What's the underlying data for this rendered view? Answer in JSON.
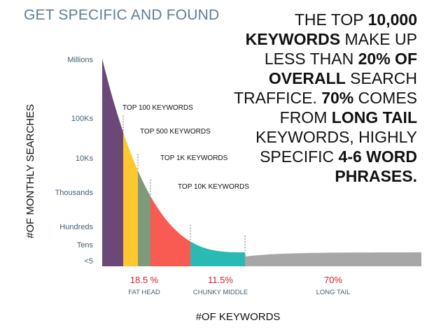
{
  "heading": "GET SPECIFIC AND FOUND",
  "callout": [
    {
      "t": "THE TOP ",
      "b": false
    },
    {
      "t": "10,000 KEYWORDS",
      "b": true
    },
    {
      "t": " MAKE UP LESS THAN ",
      "b": false
    },
    {
      "t": "20% OF OVERALL",
      "b": true
    },
    {
      "t": " SEARCH TRAFFICE. ",
      "b": false
    },
    {
      "t": "70%",
      "b": true
    },
    {
      "t": " COMES FROM ",
      "b": false
    },
    {
      "t": "LONG TAIL",
      "b": true
    },
    {
      "t": " KEYWORDS, HIGHLY SPECIFIC ",
      "b": false
    },
    {
      "t": "4-6 WORD PHRASES.",
      "b": true
    }
  ],
  "chart_data": {
    "type": "area",
    "ylabel": "#OF MONTHLY SEARCHES",
    "xlabel": "#OF KEYWORDS",
    "y_ticks": [
      "Millions",
      "100Ks",
      "10Ks",
      "Thousands",
      "Hundreds",
      "Tens",
      "<5"
    ],
    "markers": [
      "TOP 100 KEYWORDS",
      "TOP 500 KEYWORDS",
      "TOP 1K KEYWORDS",
      "TOP 10K KEYWORDS"
    ],
    "segments": [
      {
        "name": "Top 100",
        "color": "#6b4877"
      },
      {
        "name": "Top 500",
        "color": "#fdc72f"
      },
      {
        "name": "Top 1K",
        "color": "#7e9a79"
      },
      {
        "name": "Top 10K",
        "color": "#f95a52"
      },
      {
        "name": "Chunky middle",
        "color": "#2bb9b4"
      },
      {
        "name": "Long tail",
        "color": "#a7a7a7"
      }
    ],
    "groups": [
      {
        "value": "18.5 %",
        "name": "FAT HEAD"
      },
      {
        "value": "11.5%",
        "name": "CHUNKY MIDDLE"
      },
      {
        "value": "70%",
        "name": "LONG TAIL"
      }
    ],
    "value_color": "#d0202e",
    "name_color": "#3f5f73"
  }
}
